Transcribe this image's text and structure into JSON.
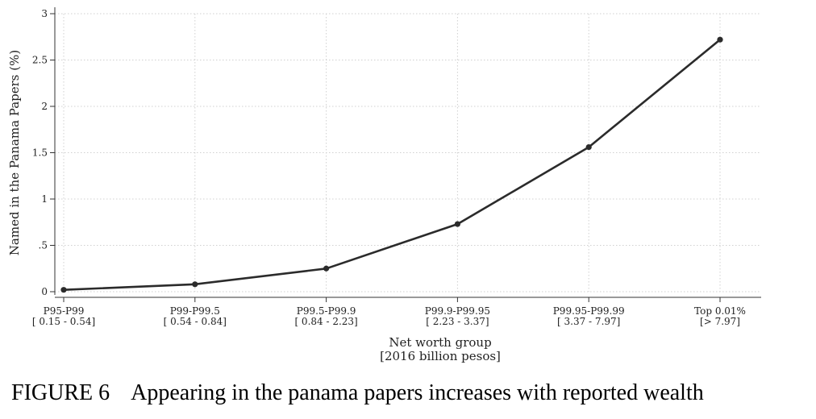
{
  "chart_data": {
    "type": "line",
    "categories": [
      "P95-P99\n[ 0.15 -  0.54]",
      "P99-P99.5\n[ 0.54 -  0.84]",
      "P99.5-P99.9\n[ 0.84 -  2.23]",
      "P99.9-P99.95\n[ 2.23 -  3.37]",
      "P99.95-P99.99\n[ 3.37 -  7.97]",
      "Top 0.01%\n[> 7.97]"
    ],
    "values": [
      0.02,
      0.08,
      0.25,
      0.73,
      1.56,
      2.72
    ],
    "yticks": [
      0,
      0.5,
      1,
      1.5,
      2,
      2.5,
      3
    ],
    "ytick_labels": [
      "0",
      ".5",
      "1",
      "1.5",
      "2",
      "2.5",
      "3"
    ],
    "ylim": [
      0,
      3
    ],
    "xlabel": "Net worth group\n[2016 billion pesos]",
    "ylabel": "Named in the Panama Papers (%)",
    "grid": true,
    "line_color": "#2b2b2b",
    "grid_color": "#d0d0d0"
  },
  "caption": {
    "figure_number": "FIGURE 6",
    "text": "Appearing in the panama papers increases with reported wealth"
  }
}
